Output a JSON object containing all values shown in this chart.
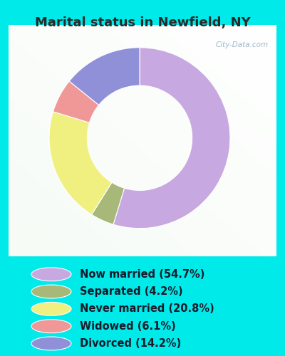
{
  "title": "Marital status in Newfield, NY",
  "slices": [
    54.7,
    4.2,
    20.8,
    6.1,
    14.2
  ],
  "labels": [
    "Now married (54.7%)",
    "Separated (4.2%)",
    "Never married (20.8%)",
    "Widowed (6.1%)",
    "Divorced (14.2%)"
  ],
  "colors": [
    "#c8a8e0",
    "#a8b878",
    "#f0f080",
    "#f09898",
    "#9090d8"
  ],
  "bg_outer": "#00eaea",
  "bg_inner_color1": "#e8f8e8",
  "bg_inner_color2": "#ffffff",
  "title_fontsize": 13,
  "legend_fontsize": 10.5,
  "watermark": "City-Data.com"
}
